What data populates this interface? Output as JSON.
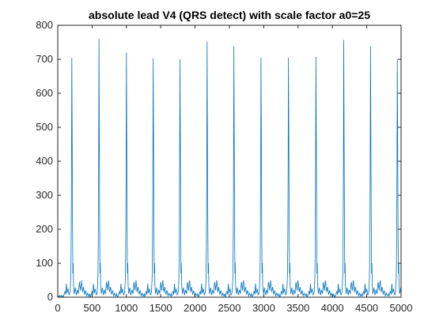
{
  "chart_data": {
    "type": "line",
    "title": "absolute lead V4 (QRS detect) with scale factor a0=25",
    "xlabel": "",
    "ylabel": "",
    "xlim": [
      0,
      5000
    ],
    "ylim": [
      0,
      800
    ],
    "xticks": [
      "0",
      "500",
      "1000",
      "1500",
      "2000",
      "2500",
      "3000",
      "3500",
      "4000",
      "4500",
      "5000"
    ],
    "yticks": [
      "0",
      "100",
      "200",
      "300",
      "400",
      "500",
      "600",
      "700",
      "800"
    ],
    "grid": false,
    "line_color": "#0072BD",
    "beat_spacing": 395,
    "sample_step": 5,
    "beats": [
      {
        "x": 205,
        "peak": 705
      },
      {
        "x": 600,
        "peak": 760
      },
      {
        "x": 1000,
        "peak": 720
      },
      {
        "x": 1390,
        "peak": 703
      },
      {
        "x": 1780,
        "peak": 700
      },
      {
        "x": 2175,
        "peak": 752
      },
      {
        "x": 2565,
        "peak": 738
      },
      {
        "x": 2960,
        "peak": 705
      },
      {
        "x": 3360,
        "peak": 705
      },
      {
        "x": 3760,
        "peak": 707
      },
      {
        "x": 4165,
        "peak": 757
      },
      {
        "x": 4555,
        "peak": 738
      },
      {
        "x": 4945,
        "peak": 700
      }
    ],
    "beat_template": [
      {
        "dx": -120,
        "y": 3
      },
      {
        "dx": -100,
        "y": 18
      },
      {
        "dx": -90,
        "y": 8
      },
      {
        "dx": -80,
        "y": 40
      },
      {
        "dx": -70,
        "y": 12
      },
      {
        "dx": -55,
        "y": 25
      },
      {
        "dx": -40,
        "y": 6
      },
      {
        "dx": -25,
        "y": 15
      },
      {
        "dx": -15,
        "y": 60
      },
      {
        "dx": -10,
        "y": 150
      },
      {
        "dx": -5,
        "y": 350
      },
      {
        "dx": 0,
        "y": 1.0
      },
      {
        "dx": 5,
        "y": 480
      },
      {
        "dx": 10,
        "y": 230
      },
      {
        "dx": 15,
        "y": 70
      },
      {
        "dx": 20,
        "y": 100
      },
      {
        "dx": 25,
        "y": 35
      },
      {
        "dx": 35,
        "y": 10
      },
      {
        "dx": 50,
        "y": 28
      },
      {
        "dx": 65,
        "y": 6
      },
      {
        "dx": 80,
        "y": 22
      },
      {
        "dx": 95,
        "y": 10
      },
      {
        "dx": 110,
        "y": 45
      },
      {
        "dx": 125,
        "y": 20
      },
      {
        "dx": 140,
        "y": 50
      },
      {
        "dx": 155,
        "y": 15
      },
      {
        "dx": 170,
        "y": 30
      },
      {
        "dx": 185,
        "y": 8
      },
      {
        "dx": 200,
        "y": 20
      },
      {
        "dx": 215,
        "y": 4
      },
      {
        "dx": 230,
        "y": 12
      },
      {
        "dx": 245,
        "y": 3
      },
      {
        "dx": 260,
        "y": 10
      }
    ]
  }
}
